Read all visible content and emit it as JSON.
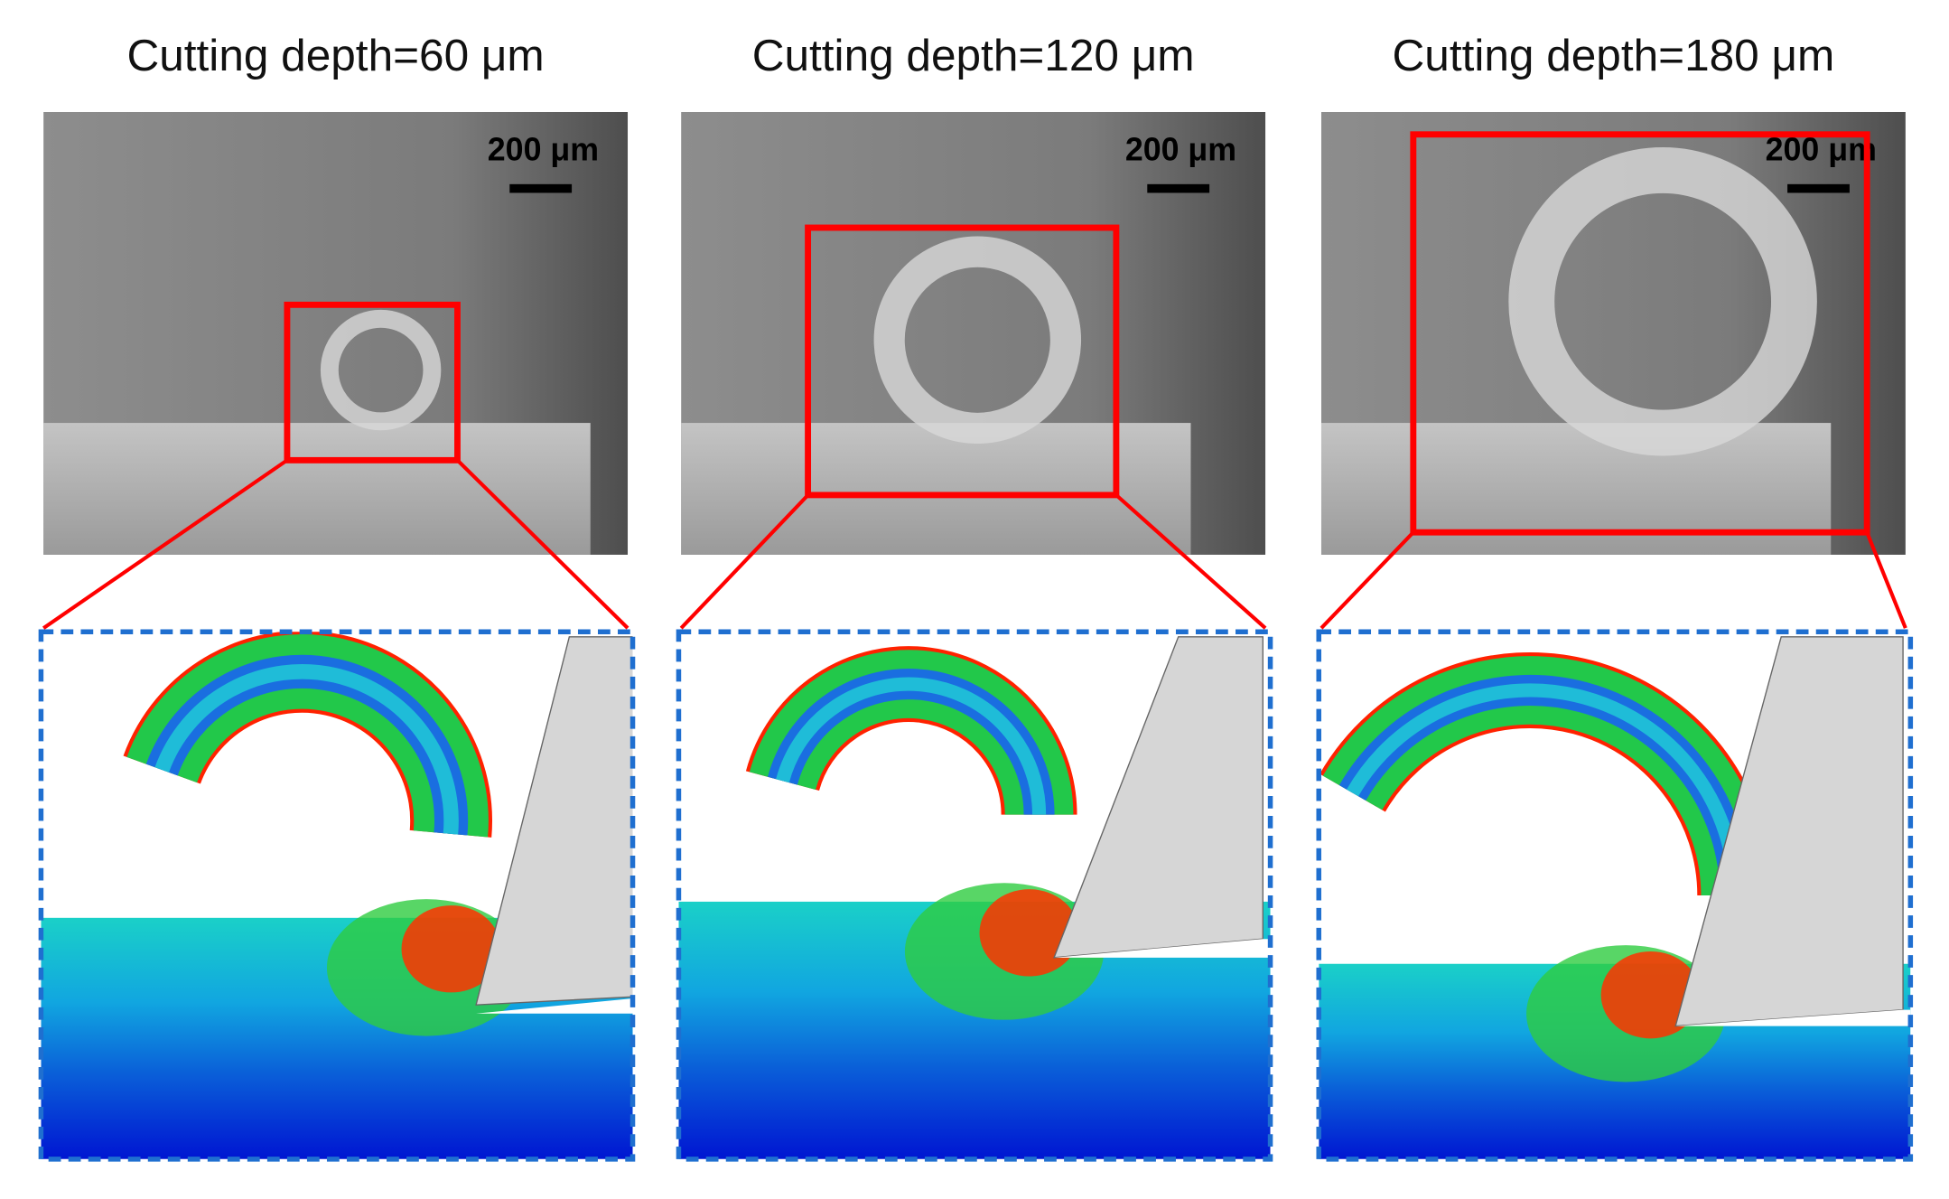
{
  "panels": [
    {
      "title": "Cutting depth=60 μm",
      "scale_bar": "200 μm"
    },
    {
      "title": "Cutting depth=120 μm",
      "scale_bar": "200 μm"
    },
    {
      "title": "Cutting depth=180 μm",
      "scale_bar": "200 μm"
    }
  ]
}
